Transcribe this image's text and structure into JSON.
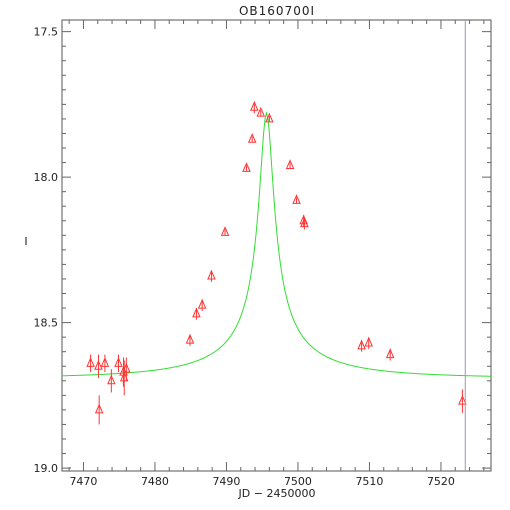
{
  "chart_data": {
    "type": "scatter",
    "title": "OB160700I",
    "xlabel": "JD − 2450000",
    "ylabel": "I",
    "xlim": [
      7467,
      7527
    ],
    "ylim": [
      19.01,
      17.46
    ],
    "y_inverted": true,
    "xticks": [
      7470,
      7480,
      7490,
      7500,
      7510,
      7520
    ],
    "yticks": [
      17.5,
      18.0,
      18.5,
      19.0
    ],
    "ytick_labels": [
      "17.5",
      "18.0",
      "18.5",
      "19.0"
    ],
    "grid": false,
    "series": [
      {
        "marker": "open-triangle",
        "color": "#ff3333",
        "points": [
          {
            "x": 7471.0,
            "y": 18.64,
            "err": 0.03
          },
          {
            "x": 7472.1,
            "y": 18.65,
            "err": 0.04
          },
          {
            "x": 7472.2,
            "y": 18.8,
            "err": 0.05
          },
          {
            "x": 7473.0,
            "y": 18.64,
            "err": 0.03
          },
          {
            "x": 7473.9,
            "y": 18.7,
            "err": 0.04
          },
          {
            "x": 7474.9,
            "y": 18.64,
            "err": 0.03
          },
          {
            "x": 7475.6,
            "y": 18.67,
            "err": 0.05
          },
          {
            "x": 7475.7,
            "y": 18.69,
            "err": 0.06
          },
          {
            "x": 7476.0,
            "y": 18.66,
            "err": 0.04
          },
          {
            "x": 7484.9,
            "y": 18.56,
            "err": 0.02
          },
          {
            "x": 7485.8,
            "y": 18.47,
            "err": 0.02
          },
          {
            "x": 7486.6,
            "y": 18.44,
            "err": 0.02
          },
          {
            "x": 7487.9,
            "y": 18.34,
            "err": 0.02
          },
          {
            "x": 7489.8,
            "y": 18.19,
            "err": 0.01
          },
          {
            "x": 7492.8,
            "y": 17.97,
            "err": 0.01
          },
          {
            "x": 7493.6,
            "y": 17.87,
            "err": 0.01
          },
          {
            "x": 7493.9,
            "y": 17.76,
            "err": 0.02
          },
          {
            "x": 7494.8,
            "y": 17.78,
            "err": 0.01
          },
          {
            "x": 7496.0,
            "y": 17.8,
            "err": 0.01
          },
          {
            "x": 7498.9,
            "y": 17.96,
            "err": 0.01
          },
          {
            "x": 7499.8,
            "y": 18.08,
            "err": 0.01
          },
          {
            "x": 7500.8,
            "y": 18.15,
            "err": 0.02
          },
          {
            "x": 7500.9,
            "y": 18.16,
            "err": 0.02
          },
          {
            "x": 7508.9,
            "y": 18.58,
            "err": 0.02
          },
          {
            "x": 7509.9,
            "y": 18.57,
            "err": 0.02
          },
          {
            "x": 7512.9,
            "y": 18.61,
            "err": 0.02
          },
          {
            "x": 7523.0,
            "y": 18.77,
            "err": 0.04
          }
        ]
      }
    ],
    "model_curve": {
      "color": "#33dd33",
      "t0": 7495.6,
      "u0": 0.05,
      "tE": 20.0,
      "baseline_mag": 18.69,
      "peak_mag": 17.78,
      "x_range": [
        7467,
        7527
      ]
    },
    "vertical_line": {
      "x": 7523.4,
      "color": "#9a9ab0"
    }
  }
}
